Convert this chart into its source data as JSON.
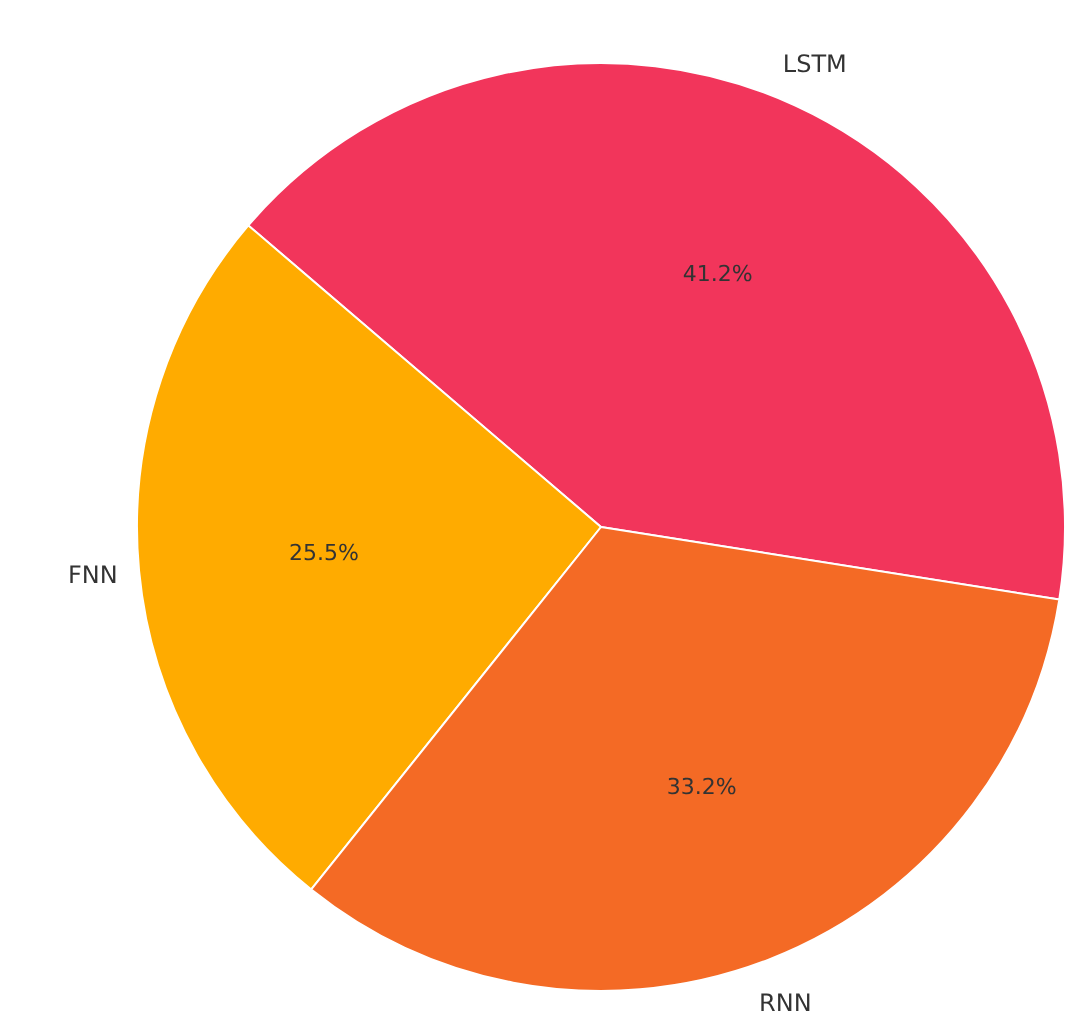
{
  "chart_data": {
    "type": "pie",
    "categories": [
      "LSTM",
      "FNN",
      "RNN"
    ],
    "values": [
      41.2,
      25.5,
      33.2
    ],
    "colors": [
      "#f2355b",
      "#ffab00",
      "#f46a25"
    ],
    "value_labels": [
      "41.2%",
      "25.5%",
      "33.2%"
    ]
  }
}
